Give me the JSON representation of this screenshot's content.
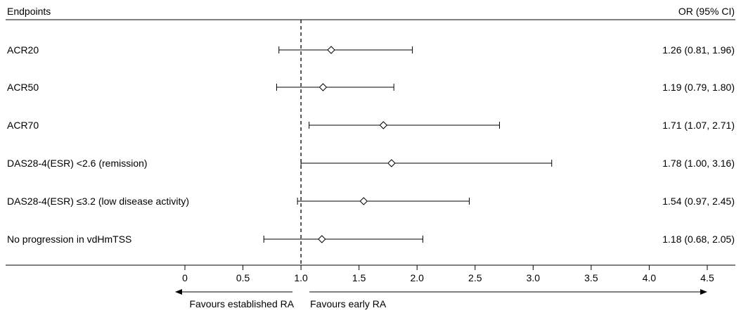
{
  "chart_data": {
    "type": "forest",
    "header": {
      "left": "Endpoints",
      "right": "OR (95% CI)"
    },
    "rows": [
      {
        "label": "ACR20",
        "or": 1.26,
        "lower": 0.81,
        "upper": 1.96,
        "text": "1.26 (0.81, 1.96)"
      },
      {
        "label": "ACR50",
        "or": 1.19,
        "lower": 0.79,
        "upper": 1.8,
        "text": "1.19 (0.79, 1.80)"
      },
      {
        "label": "ACR70",
        "or": 1.71,
        "lower": 1.07,
        "upper": 2.71,
        "text": "1.71 (1.07, 2.71)"
      },
      {
        "label": "DAS28-4(ESR) <2.6 (remission)",
        "or": 1.78,
        "lower": 1.0,
        "upper": 3.16,
        "text": "1.78 (1.00, 3.16)"
      },
      {
        "label": "DAS28-4(ESR) ≤3.2 (low disease activity)",
        "or": 1.54,
        "lower": 0.97,
        "upper": 2.45,
        "text": "1.54 (0.97, 2.45)"
      },
      {
        "label": "No progression in vdHmTSS",
        "or": 1.18,
        "lower": 0.68,
        "upper": 2.05,
        "text": "1.18 (0.68, 2.05)"
      }
    ],
    "xlim": [
      0,
      4.5
    ],
    "reference_line": 1.0,
    "ticks": [
      "0",
      "0.5",
      "1.0",
      "1.5",
      "2.0",
      "2.5",
      "3.0",
      "3.5",
      "4.0",
      "4.5"
    ],
    "favour_left": "Favours established RA",
    "favour_right": "Favours early RA"
  }
}
